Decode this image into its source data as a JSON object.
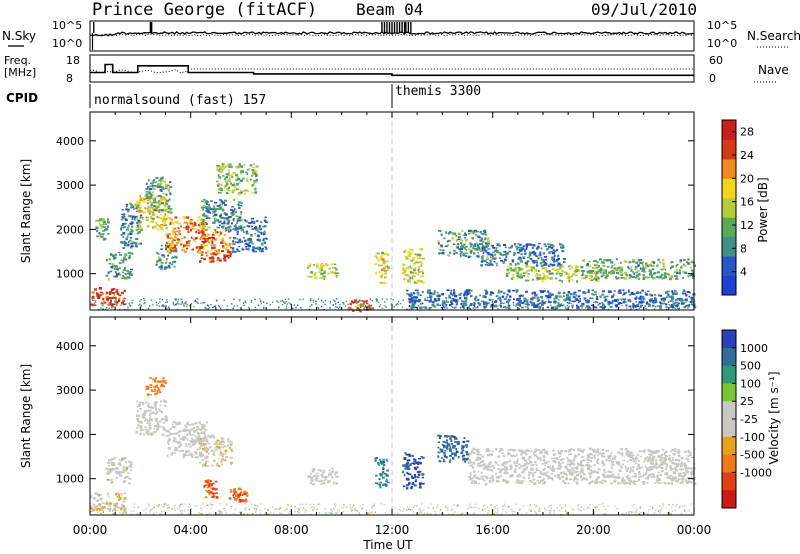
{
  "header": {
    "station": "Prince George (fitACF)",
    "beam": "Beam 04",
    "date": "09/Jul/2010"
  },
  "labels": {
    "nsky": "N.Sky",
    "nsearch": "N.Search",
    "freq_line1": "Freq.",
    "freq_line2": "[MHz]",
    "nave": "Nave",
    "cpid": "CPID",
    "xaxis": "Time UT",
    "slant_range": "Slant Range [km]",
    "power_label": "Power [dB]",
    "velocity_label": "Velocity [m s⁻¹]"
  },
  "noise_panel": {
    "left_ticks": [
      "10^5",
      "10^0"
    ],
    "right_ticks": [
      "10^5",
      "10^0"
    ]
  },
  "freq_panel": {
    "left_ticks": [
      "18",
      "8"
    ],
    "right_ticks": [
      "60",
      "0"
    ]
  },
  "cpid_panel": {
    "programs": [
      {
        "label": "normalsound (fast) 157",
        "start_hour": 0
      },
      {
        "label": "themis 3300",
        "start_hour": 12
      }
    ]
  },
  "colors": {
    "power": [
      "#1f3fd8",
      "#2a55c8",
      "#3f8f8a",
      "#5aa85a",
      "#b5cc3a",
      "#f1d51a",
      "#f08a1e",
      "#d43a1a",
      "#c8201e"
    ],
    "velocity": [
      "#2b3fb8",
      "#2e6f9a",
      "#2f9a7a",
      "#7cc43a",
      "#c8c8c0",
      "#c8c8c0",
      "#e8a020",
      "#f07a18",
      "#e04018",
      "#cc1818"
    ]
  },
  "chart_data": [
    {
      "type": "heatmap",
      "title": "Power",
      "xlabel": "Time UT",
      "ylabel": "Slant Range [km]",
      "x_ticks": [
        "00:00",
        "04:00",
        "08:00",
        "12:00",
        "16:00",
        "20:00",
        "00:00"
      ],
      "xlim_hours": [
        0,
        24
      ],
      "y_ticks": [
        1000,
        2000,
        3000,
        4000
      ],
      "ylim_km": [
        180,
        4650
      ],
      "colorbar_label": "Power [dB]",
      "colorbar_ticks": [
        4,
        8,
        12,
        16,
        20,
        24,
        28
      ],
      "colorbar_range": [
        0,
        30
      ],
      "echo_regions": [
        {
          "t0": 0.0,
          "t1": 1.4,
          "r0": 300,
          "r1": 700,
          "level": 26
        },
        {
          "t0": 0.2,
          "t1": 0.7,
          "r0": 1800,
          "r1": 2300,
          "level": 12
        },
        {
          "t0": 0.6,
          "t1": 1.6,
          "r0": 900,
          "r1": 1500,
          "level": 10
        },
        {
          "t0": 1.2,
          "t1": 2.0,
          "r0": 1600,
          "r1": 2600,
          "level": 8
        },
        {
          "t0": 1.8,
          "t1": 3.0,
          "r0": 2000,
          "r1": 2800,
          "level": 17
        },
        {
          "t0": 2.2,
          "t1": 3.2,
          "r0": 2400,
          "r1": 3200,
          "level": 11
        },
        {
          "t0": 2.6,
          "t1": 3.4,
          "r0": 1100,
          "r1": 1700,
          "level": 9
        },
        {
          "t0": 3.0,
          "t1": 4.6,
          "r0": 1500,
          "r1": 2300,
          "level": 22
        },
        {
          "t0": 4.3,
          "t1": 5.6,
          "r0": 1300,
          "r1": 2000,
          "level": 24
        },
        {
          "t0": 4.4,
          "t1": 6.0,
          "r0": 2000,
          "r1": 2700,
          "level": 9
        },
        {
          "t0": 5.0,
          "t1": 6.6,
          "r0": 2800,
          "r1": 3500,
          "level": 13
        },
        {
          "t0": 5.6,
          "t1": 7.0,
          "r0": 1500,
          "r1": 2300,
          "level": 7
        },
        {
          "t0": 8.6,
          "t1": 9.8,
          "r0": 900,
          "r1": 1250,
          "level": 15
        },
        {
          "t0": 10.2,
          "t1": 11.2,
          "r0": 180,
          "r1": 420,
          "level": 23
        },
        {
          "t0": 11.3,
          "t1": 11.8,
          "r0": 800,
          "r1": 1500,
          "level": 18
        },
        {
          "t0": 12.4,
          "t1": 13.2,
          "r0": 800,
          "r1": 1600,
          "level": 16
        },
        {
          "t0": 13.8,
          "t1": 15.8,
          "r0": 1400,
          "r1": 2000,
          "level": 10
        },
        {
          "t0": 15.5,
          "t1": 18.8,
          "r0": 1200,
          "r1": 1700,
          "level": 7
        },
        {
          "t0": 16.5,
          "t1": 20.2,
          "r0": 850,
          "r1": 1200,
          "level": 14
        },
        {
          "t0": 19.5,
          "t1": 24.0,
          "r0": 900,
          "r1": 1350,
          "level": 11
        },
        {
          "t0": 12.5,
          "t1": 24.0,
          "r0": 250,
          "r1": 650,
          "level": 6
        }
      ]
    },
    {
      "type": "heatmap",
      "title": "Velocity",
      "xlabel": "Time UT",
      "ylabel": "Slant Range [km]",
      "x_ticks": [
        "00:00",
        "04:00",
        "08:00",
        "12:00",
        "16:00",
        "20:00",
        "00:00"
      ],
      "xlim_hours": [
        0,
        24
      ],
      "y_ticks": [
        1000,
        2000,
        3000,
        4000
      ],
      "ylim_km": [
        180,
        4650
      ],
      "colorbar_label": "Velocity [m s⁻¹]",
      "colorbar_ticks": [
        1000,
        500,
        100,
        25,
        -25,
        -100,
        -500,
        -1000
      ],
      "echo_regions": [
        {
          "t0": 0.0,
          "t1": 1.4,
          "r0": 300,
          "r1": 700,
          "level": -20
        },
        {
          "t0": 0.6,
          "t1": 1.6,
          "r0": 900,
          "r1": 1500,
          "level": 10
        },
        {
          "t0": 1.8,
          "t1": 3.0,
          "r0": 2000,
          "r1": 2800,
          "level": 5
        },
        {
          "t0": 2.2,
          "t1": 3.0,
          "r0": 2900,
          "r1": 3300,
          "level": -350
        },
        {
          "t0": 3.0,
          "t1": 4.6,
          "r0": 1500,
          "r1": 2300,
          "level": 0
        },
        {
          "t0": 4.3,
          "t1": 5.6,
          "r0": 1300,
          "r1": 2000,
          "level": -15
        },
        {
          "t0": 4.5,
          "t1": 5.0,
          "r0": 600,
          "r1": 1000,
          "level": -600
        },
        {
          "t0": 5.5,
          "t1": 6.2,
          "r0": 500,
          "r1": 800,
          "level": -500
        },
        {
          "t0": 8.6,
          "t1": 9.8,
          "r0": 900,
          "r1": 1250,
          "level": 5
        },
        {
          "t0": 11.3,
          "t1": 11.8,
          "r0": 800,
          "r1": 1500,
          "level": 300
        },
        {
          "t0": 12.4,
          "t1": 13.2,
          "r0": 800,
          "r1": 1600,
          "level": 800
        },
        {
          "t0": 13.8,
          "t1": 15.0,
          "r0": 1400,
          "r1": 2000,
          "level": 600
        },
        {
          "t0": 15.0,
          "t1": 24.0,
          "r0": 900,
          "r1": 1700,
          "level": 0
        }
      ]
    }
  ]
}
